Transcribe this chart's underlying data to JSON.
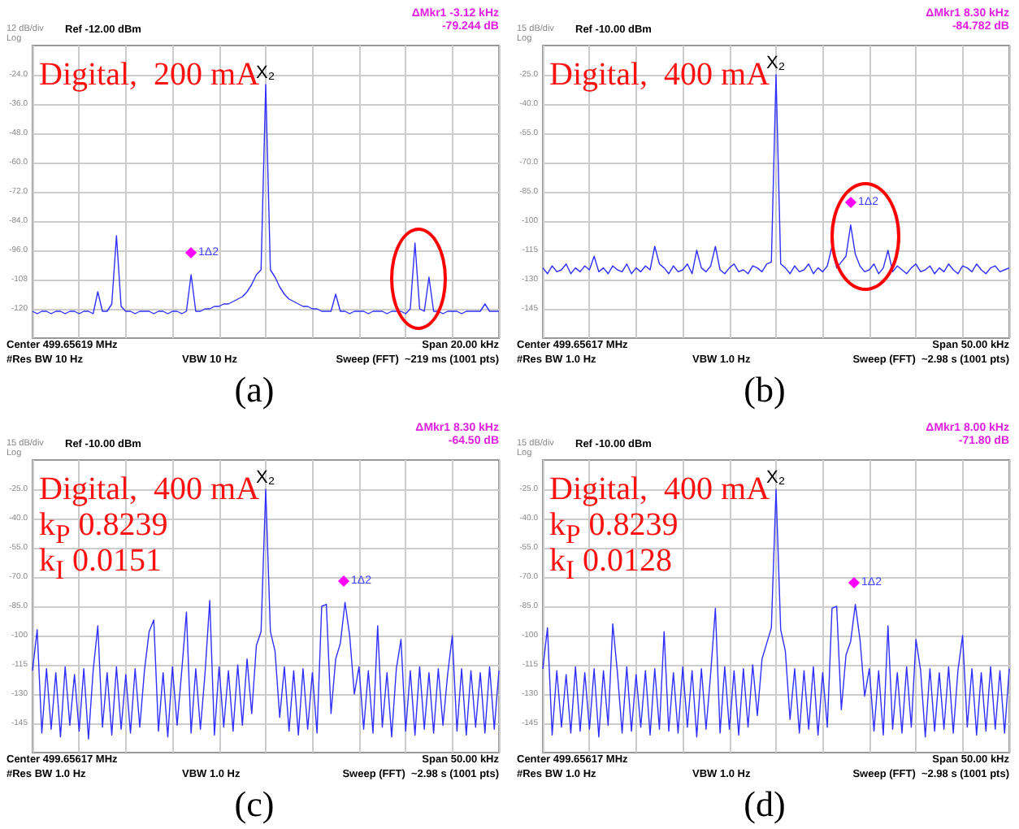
{
  "chart_data": [
    {
      "type": "line",
      "color": "#2f2fff",
      "categories": [
        null,
        null,
        null,
        null,
        null,
        null,
        null,
        null,
        null,
        null,
        null,
        null,
        null,
        null,
        null,
        null,
        null,
        null,
        null,
        null,
        null,
        null,
        null,
        null,
        null,
        null,
        null,
        null,
        null,
        null,
        null,
        null,
        null,
        null,
        null,
        null,
        null,
        null,
        null,
        null,
        null,
        null,
        null,
        null,
        null,
        null,
        null,
        null,
        null,
        null,
        null,
        null,
        null,
        null,
        null,
        null,
        null,
        null,
        null,
        null,
        null,
        null,
        null,
        null,
        null,
        null,
        null,
        null,
        null,
        null,
        null,
        null,
        null,
        null,
        null,
        null,
        null,
        null,
        null,
        null,
        null,
        null,
        null,
        null,
        null,
        null,
        null,
        null,
        null,
        null,
        null,
        null,
        null,
        null,
        null,
        null,
        null,
        null,
        null,
        null,
        null
      ],
      "values": [
        -121,
        -122,
        -121,
        -121,
        -122,
        -121,
        -121,
        -122,
        -121,
        -121,
        -122,
        -121,
        -121,
        -122,
        -113,
        -121,
        -121,
        -118,
        -90,
        -119,
        -121,
        -121,
        -122,
        -121,
        -121,
        -121,
        -122,
        -121,
        -121,
        -122,
        -121,
        -121,
        -122,
        -121,
        -106,
        -121,
        -121,
        -120,
        -120,
        -119,
        -119,
        -118,
        -118,
        -117,
        -116,
        -115,
        -113,
        -110,
        -106,
        -104,
        -28,
        -104,
        -107,
        -111,
        -114,
        -116,
        -117,
        -118,
        -119,
        -119,
        -120,
        -120,
        -121,
        -121,
        -121,
        -114,
        -121,
        -121,
        -122,
        -121,
        -121,
        -121,
        -122,
        -121,
        -121,
        -121,
        -122,
        -121,
        -121,
        -121,
        -122,
        -120,
        -93,
        -120,
        -121,
        -107,
        -121,
        -121,
        -122,
        -121,
        -121,
        -121,
        -122,
        -121,
        -121,
        -121,
        -121,
        -118,
        -121,
        -121,
        -121
      ],
      "ylim": [
        -132,
        -12
      ],
      "yticks": [
        {
          "value": -24,
          "label": "-24.0"
        },
        {
          "value": -36,
          "label": "-36.0"
        },
        {
          "value": -48,
          "label": "-48.0"
        },
        {
          "value": -60,
          "label": "-60.0"
        },
        {
          "value": -72,
          "label": "-72.0"
        },
        {
          "value": -84,
          "label": "-84.0"
        },
        {
          "value": -96,
          "label": "-96.0"
        },
        {
          "value": -108,
          "label": "-108"
        },
        {
          "value": -120,
          "label": "-120"
        }
      ],
      "grid": true,
      "tick_labels": "y",
      "annotations": [
        "12 dB/div",
        "Log",
        "Ref -12.00 dBm",
        "ΔMkr1 -3.12 kHz",
        "-79.244 dB",
        "Center 499.65619 MHz",
        "#Res BW 10 Hz",
        "VBW 10 Hz",
        "Span 20.00 kHz",
        "Sweep (FFT)  ~219 ms (1001 pts)",
        "(a)",
        "1Δ2",
        "Digital,  200 mA",
        {
          "text": "X₂",
          "y": -28
        }
      ]
    },
    {
      "type": "line",
      "color": "#2f2fff",
      "categories": [
        null,
        null,
        null,
        null,
        null,
        null,
        null,
        null,
        null,
        null,
        null,
        null,
        null,
        null,
        null,
        null,
        null,
        null,
        null,
        null,
        null,
        null,
        null,
        null,
        null,
        null,
        null,
        null,
        null,
        null,
        null,
        null,
        null,
        null,
        null,
        null,
        null,
        null,
        null,
        null,
        null,
        null,
        null,
        null,
        null,
        null,
        null,
        null,
        null,
        null,
        null,
        null,
        null,
        null,
        null,
        null,
        null,
        null,
        null,
        null,
        null,
        null,
        null,
        null,
        null,
        null,
        null,
        null,
        null,
        null,
        null,
        null,
        null,
        null,
        null,
        null,
        null,
        null,
        null,
        null,
        null,
        null,
        null,
        null,
        null,
        null,
        null,
        null,
        null,
        null,
        null,
        null,
        null,
        null,
        null,
        null,
        null,
        null,
        null,
        null,
        null
      ],
      "values": [
        -124,
        -127,
        -123,
        -126,
        -125,
        -122,
        -127,
        -124,
        -126,
        -123,
        -125,
        -118,
        -126,
        -124,
        -127,
        -123,
        -125,
        -126,
        -122,
        -127,
        -124,
        -126,
        -123,
        -125,
        -113,
        -122,
        -124,
        -127,
        -123,
        -126,
        -125,
        -122,
        -127,
        -115,
        -124,
        -126,
        -123,
        -113,
        -125,
        -127,
        -124,
        -122,
        -126,
        -125,
        -127,
        -123,
        -124,
        -126,
        -122,
        -121,
        -25,
        -122,
        -124,
        -127,
        -123,
        -126,
        -125,
        -122,
        -127,
        -124,
        -126,
        -123,
        -113,
        -124,
        -121,
        -118,
        -102,
        -117,
        -123,
        -126,
        -125,
        -122,
        -127,
        -124,
        -115,
        -126,
        -123,
        -125,
        -127,
        -124,
        -122,
        -126,
        -125,
        -123,
        -127,
        -124,
        -126,
        -122,
        -125,
        -127,
        -123,
        -124,
        -126,
        -122,
        -125,
        -127,
        -124,
        -123,
        -126,
        -125,
        -124
      ],
      "ylim": [
        -160,
        -10
      ],
      "yticks": [
        {
          "value": -25,
          "label": "-25.0"
        },
        {
          "value": -40,
          "label": "-40.0"
        },
        {
          "value": -55,
          "label": "-55.0"
        },
        {
          "value": -70,
          "label": "-70.0"
        },
        {
          "value": -85,
          "label": "-85.0"
        },
        -100,
        -115,
        -130,
        -145
      ],
      "grid": true,
      "tick_labels": "y",
      "annotations": [
        "15 dB/div",
        "Log",
        "Ref -10.00 dBm",
        "ΔMkr1 8.30 kHz",
        "-84.782 dB",
        "Center 499.65617 MHz",
        "#Res BW 1.0 Hz",
        "VBW 1.0 Hz",
        "Span 50.00 kHz",
        "Sweep (FFT)  ~2.98 s (1001 pts)",
        "(b)",
        "1Δ2",
        "Digital,  400 mA",
        {
          "text": "X₂",
          "y": -25
        }
      ]
    },
    {
      "type": "line",
      "color": "#2f2fff",
      "categories": [
        null,
        null,
        null,
        null,
        null,
        null,
        null,
        null,
        null,
        null,
        null,
        null,
        null,
        null,
        null,
        null,
        null,
        null,
        null,
        null,
        null,
        null,
        null,
        null,
        null,
        null,
        null,
        null,
        null,
        null,
        null,
        null,
        null,
        null,
        null,
        null,
        null,
        null,
        null,
        null,
        null,
        null,
        null,
        null,
        null,
        null,
        null,
        null,
        null,
        null,
        null,
        null,
        null,
        null,
        null,
        null,
        null,
        null,
        null,
        null,
        null,
        null,
        null,
        null,
        null,
        null,
        null,
        null,
        null,
        null,
        null,
        null,
        null,
        null,
        null,
        null,
        null,
        null,
        null,
        null,
        null,
        null,
        null,
        null,
        null,
        null,
        null,
        null,
        null,
        null,
        null,
        null,
        null,
        null,
        null,
        null,
        null,
        null,
        null,
        null,
        null
      ],
      "values": [
        -118,
        -97,
        -150,
        -117,
        -148,
        -119,
        -152,
        -116,
        -146,
        -120,
        -149,
        -117,
        -153,
        -118,
        -95,
        -147,
        -119,
        -151,
        -116,
        -148,
        -120,
        -150,
        -117,
        -147,
        -118,
        -98,
        -92,
        -149,
        -119,
        -152,
        -116,
        -146,
        -118,
        -88,
        -150,
        -117,
        -148,
        -119,
        -82,
        -151,
        -116,
        -147,
        -118,
        -149,
        -115,
        -146,
        -112,
        -140,
        -105,
        -98,
        -25,
        -98,
        -108,
        -142,
        -116,
        -149,
        -118,
        -151,
        -117,
        -148,
        -119,
        -150,
        -85,
        -84,
        -140,
        -112,
        -104,
        -83,
        -100,
        -130,
        -116,
        -148,
        -118,
        -150,
        -95,
        -147,
        -119,
        -152,
        -117,
        -102,
        -149,
        -118,
        -151,
        -116,
        -148,
        -119,
        -150,
        -117,
        -146,
        -120,
        -100,
        -149,
        -117,
        -151,
        -118,
        -147,
        -119,
        -150,
        -116,
        -148,
        -118
      ],
      "ylim": [
        -160,
        -10
      ],
      "yticks": [
        {
          "value": -25,
          "label": "-25.0"
        },
        {
          "value": -40,
          "label": "-40.0"
        },
        {
          "value": -55,
          "label": "-55.0"
        },
        {
          "value": -70,
          "label": "-70.0"
        },
        {
          "value": -85,
          "label": "-85.0"
        },
        -100,
        -115,
        -130,
        -145
      ],
      "grid": true,
      "tick_labels": "y",
      "annotations": [
        "15 dB/div",
        "Log",
        "Ref -10.00 dBm",
        "ΔMkr1 8.30 kHz",
        "-64.50 dB",
        "Center 499.65617 MHz",
        "#Res BW 1.0 Hz",
        "VBW 1.0 Hz",
        "Span 50.00 kHz",
        "Sweep (FFT)  ~2.98 s (1001 pts)",
        "(c)",
        "1Δ2",
        "Digital,  400 mA",
        "k$_{P}$ 0.8239",
        "k$_{I}$ 0.0151",
        {
          "text": "X₂",
          "y": -25
        }
      ]
    },
    {
      "type": "line",
      "color": "#2f2fff",
      "categories": [
        null,
        null,
        null,
        null,
        null,
        null,
        null,
        null,
        null,
        null,
        null,
        null,
        null,
        null,
        null,
        null,
        null,
        null,
        null,
        null,
        null,
        null,
        null,
        null,
        null,
        null,
        null,
        null,
        null,
        null,
        null,
        null,
        null,
        null,
        null,
        null,
        null,
        null,
        null,
        null,
        null,
        null,
        null,
        null,
        null,
        null,
        null,
        null,
        null,
        null,
        null,
        null,
        null,
        null,
        null,
        null,
        null,
        null,
        null,
        null,
        null,
        null,
        null,
        null,
        null,
        null,
        null,
        null,
        null,
        null,
        null,
        null,
        null,
        null,
        null,
        null,
        null,
        null,
        null,
        null,
        null,
        null,
        null,
        null,
        null,
        null,
        null,
        null,
        null,
        null,
        null,
        null,
        null,
        null,
        null,
        null,
        null,
        null,
        null,
        null,
        null
      ],
      "values": [
        -117,
        -96,
        -151,
        -118,
        -147,
        -120,
        -150,
        -116,
        -149,
        -119,
        -148,
        -117,
        -152,
        -118,
        -146,
        -94,
        -119,
        -150,
        -116,
        -149,
        -120,
        -147,
        -118,
        -151,
        -117,
        -148,
        -98,
        -149,
        -119,
        -150,
        -116,
        -147,
        -118,
        -152,
        -117,
        -148,
        -119,
        -86,
        -150,
        -116,
        -148,
        -118,
        -151,
        -117,
        -147,
        -115,
        -141,
        -112,
        -104,
        -96,
        -25,
        -97,
        -108,
        -143,
        -117,
        -150,
        -118,
        -148,
        -116,
        -151,
        -119,
        -147,
        -86,
        -85,
        -138,
        -110,
        -103,
        -84,
        -102,
        -131,
        -117,
        -149,
        -118,
        -151,
        -95,
        -148,
        -119,
        -150,
        -116,
        -147,
        -102,
        -118,
        -152,
        -117,
        -149,
        -119,
        -148,
        -116,
        -150,
        -118,
        -100,
        -147,
        -117,
        -151,
        -119,
        -149,
        -116,
        -148,
        -118,
        -150,
        -117
      ],
      "ylim": [
        -160,
        -10
      ],
      "yticks": [
        {
          "value": -25,
          "label": "-25.0"
        },
        {
          "value": -40,
          "label": "-40.0"
        },
        {
          "value": -55,
          "label": "-55.0"
        },
        {
          "value": -70,
          "label": "-70.0"
        },
        {
          "value": -85,
          "label": "-85.0"
        },
        -100,
        -115,
        -130,
        -145
      ],
      "grid": true,
      "tick_labels": "y",
      "annotations": [
        "15 dB/div",
        "Log",
        "Ref -10.00 dBm",
        "ΔMkr1 8.00 kHz",
        "-71.80 dB",
        "Center 499.65617 MHz",
        "#Res BW 1.0 Hz",
        "VBW 1.0 Hz",
        "Span 50.00 kHz",
        "Sweep (FFT)  ~2.98 s (1001 pts)",
        "(d)",
        "1Δ2",
        "Digital,  400 mA",
        "k$_{P}$ 0.8239",
        "k$_{I}$ 0.0128",
        {
          "text": "X₂",
          "y": -25
        }
      ]
    }
  ]
}
